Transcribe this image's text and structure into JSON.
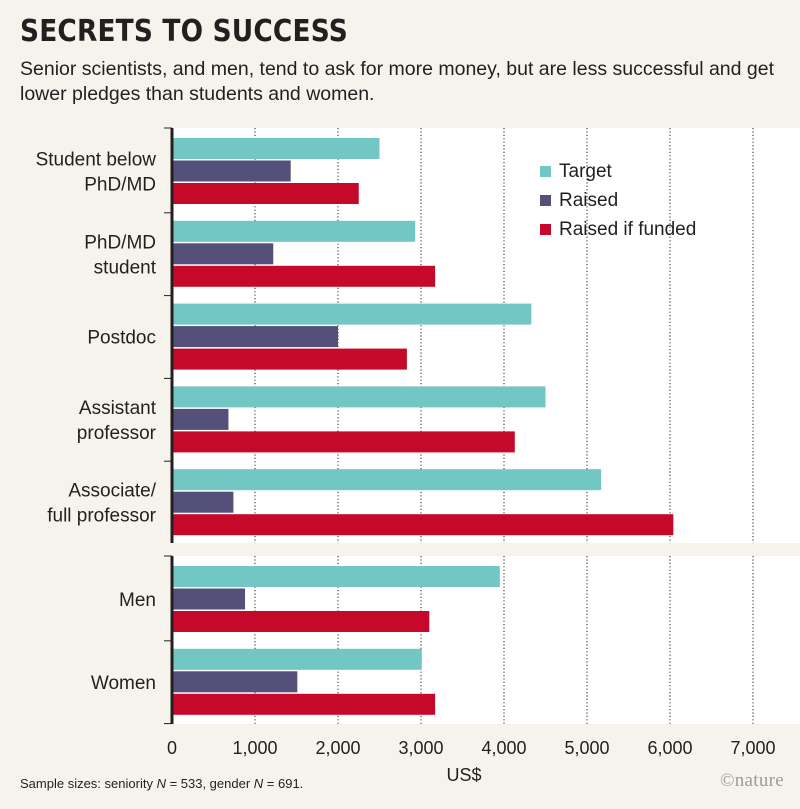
{
  "header": {
    "title": "SECRETS TO SUCCESS",
    "subtitle": "Senior scientists, and men, tend to ask for more money, but are less successful and get lower pledges than students and women."
  },
  "footnote": {
    "prefix": "Sample sizes: seniority ",
    "n1_symbol": "N",
    "n1_value": " = 533, gender ",
    "n2_symbol": "N",
    "n2_value": " = 691."
  },
  "brand": {
    "text": "©nature"
  },
  "colors": {
    "target": "#72c6c4",
    "raised": "#54507a",
    "raised_if_funded": "#c5092a",
    "background": "#f5f3ec",
    "panel": "#ffffff",
    "axis": "#231f20",
    "grid": "#231f20"
  },
  "chart_data": {
    "type": "bar",
    "orientation": "horizontal",
    "xlabel": "US$",
    "xlim": [
      0,
      7000
    ],
    "xticks": [
      0,
      1000,
      2000,
      3000,
      4000,
      5000,
      6000,
      7000
    ],
    "xtick_labels": [
      "0",
      "1,000",
      "2,000",
      "3,000",
      "4,000",
      "5,000",
      "6,000",
      "7,000"
    ],
    "grid": "vertical dotted",
    "legend_position": "top-right",
    "series": [
      {
        "name": "Target",
        "color": "#72c6c4"
      },
      {
        "name": "Raised",
        "color": "#54507a"
      },
      {
        "name": "Raised if funded",
        "color": "#c5092a"
      }
    ],
    "panels": [
      {
        "name": "seniority",
        "categories": [
          {
            "label": [
              "Student below",
              "PhD/MD"
            ],
            "values": [
              2500,
              1430,
              2250
            ]
          },
          {
            "label": [
              "PhD/MD",
              "student"
            ],
            "values": [
              2930,
              1220,
              3170
            ]
          },
          {
            "label": [
              "Postdoc"
            ],
            "values": [
              4330,
              2000,
              2830
            ]
          },
          {
            "label": [
              "Assistant",
              "professor"
            ],
            "values": [
              4500,
              680,
              4130
            ]
          },
          {
            "label": [
              "Associate/",
              "full professor"
            ],
            "values": [
              5170,
              740,
              6040
            ]
          }
        ]
      },
      {
        "name": "gender",
        "categories": [
          {
            "label": [
              "Men"
            ],
            "values": [
              3950,
              880,
              3100
            ]
          },
          {
            "label": [
              "Women"
            ],
            "values": [
              3010,
              1510,
              3170
            ]
          }
        ]
      }
    ]
  }
}
